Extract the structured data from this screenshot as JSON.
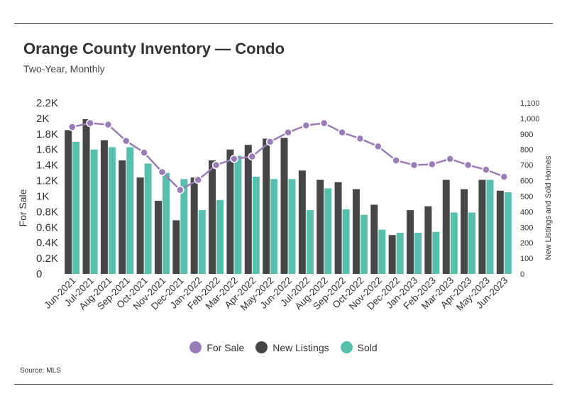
{
  "header": {
    "title": "Orange County Inventory — Condo",
    "subtitle": "Two-Year, Monthly"
  },
  "footer": {
    "source": "Source:  MLS"
  },
  "colors": {
    "for_sale": "#9b7cb8",
    "new_listings": "#464646",
    "sold": "#56bfad"
  },
  "legend": {
    "for_sale": "For Sale",
    "new_listings": "New Listings",
    "sold": "Sold"
  },
  "chart_data": {
    "type": "bar",
    "categories": [
      "Jun-2021",
      "Jul-2021",
      "Aug-2021",
      "Sep-2021",
      "Oct-2021",
      "Nov-2021",
      "Dec-2021",
      "Jan-2022",
      "Feb-2022",
      "Mar-2022",
      "Apr-2022",
      "May-2022",
      "Jun-2022",
      "Jul-2022",
      "Aug-2022",
      "Sep-2022",
      "Oct-2022",
      "Nov-2022",
      "Dec-2022",
      "Jan-2023",
      "Feb-2023",
      "Mar-2023",
      "Apr-2023",
      "May-2023",
      "Jun-2023"
    ],
    "series": [
      {
        "name": "New Listings",
        "type": "bar",
        "axis": "right",
        "values": [
          925,
          995,
          860,
          730,
          620,
          470,
          345,
          620,
          730,
          800,
          830,
          870,
          875,
          665,
          605,
          590,
          545,
          445,
          250,
          410,
          435,
          605,
          545,
          605,
          535
        ]
      },
      {
        "name": "Sold",
        "type": "bar",
        "axis": "right",
        "values": [
          850,
          800,
          815,
          815,
          710,
          650,
          610,
          410,
          475,
          760,
          625,
          610,
          610,
          410,
          550,
          415,
          380,
          285,
          265,
          265,
          270,
          395,
          395,
          605,
          525
        ]
      },
      {
        "name": "For Sale",
        "type": "line",
        "axis": "left",
        "values": [
          1890,
          1940,
          1920,
          1710,
          1560,
          1310,
          1080,
          1210,
          1400,
          1480,
          1510,
          1700,
          1820,
          1910,
          1940,
          1820,
          1740,
          1640,
          1460,
          1400,
          1410,
          1480,
          1400,
          1340,
          1250
        ]
      }
    ],
    "y_left": {
      "label": "For Sale",
      "min": 0,
      "max": 2200,
      "ticks": [
        0,
        200,
        400,
        600,
        800,
        1000,
        1200,
        1400,
        1600,
        1800,
        2000,
        2200
      ],
      "tick_labels": [
        "0",
        "0.2K",
        "0.4K",
        "0.6K",
        "0.8K",
        "1K",
        "1.2K",
        "1.4K",
        "1.6K",
        "1.8K",
        "2K",
        "2.2K"
      ]
    },
    "y_right": {
      "label": "New Listings and Sold Homes",
      "min": 0,
      "max": 1100,
      "ticks": [
        0,
        100,
        200,
        300,
        400,
        500,
        600,
        700,
        800,
        900,
        1000,
        1100
      ],
      "tick_labels": [
        "0",
        "100",
        "200",
        "300",
        "400",
        "500",
        "600",
        "700",
        "800",
        "900",
        "1,000",
        "1,100"
      ]
    },
    "grid": false,
    "legend_position": "bottom-center"
  }
}
